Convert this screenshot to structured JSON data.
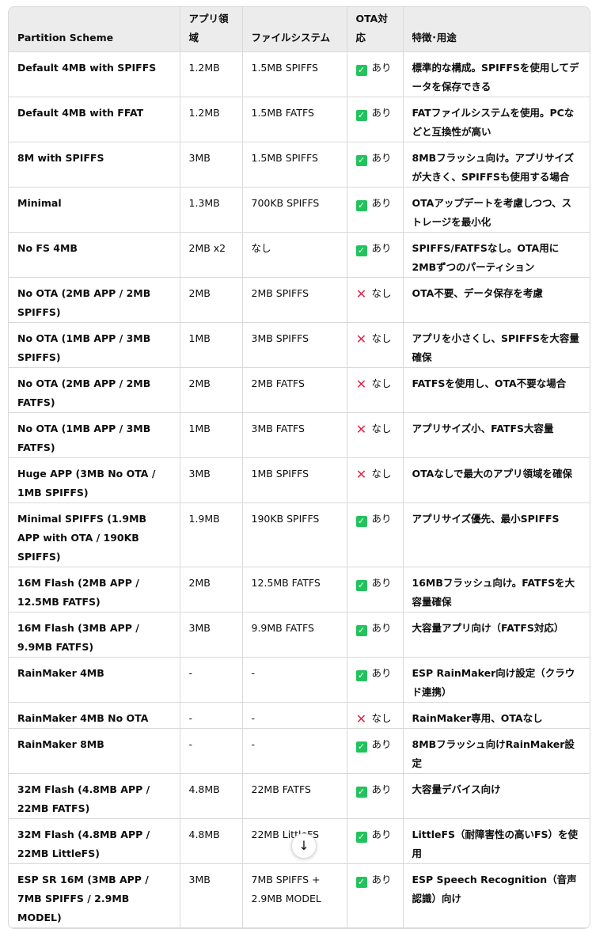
{
  "headers": [
    "Partition Scheme",
    "アプリ領域",
    "ファイルシステム",
    "OTA対応",
    "特徴･用途"
  ],
  "colors": {
    "ok": "#22c35d",
    "ng": "#e0264a",
    "header_bg": "#ececec"
  },
  "rows": [
    {
      "scheme": "Default 4MB with SPIFFS",
      "app": "1.2MB",
      "fs": "1.5MB SPIFFS",
      "ota": "あり",
      "ota_icon": "check-icon",
      "desc": "標準的な構成。SPIFFSを使用してデータを保存できる"
    },
    {
      "scheme": "Default 4MB with FFAT",
      "app": "1.2MB",
      "fs": "1.5MB FATFS",
      "ota": "あり",
      "ota_icon": "check-icon",
      "desc": "FATファイルシステムを使用。PCなどと互換性が高い"
    },
    {
      "scheme": "8M with SPIFFS",
      "app": "3MB",
      "fs": "1.5MB SPIFFS",
      "ota": "あり",
      "ota_icon": "check-icon",
      "desc": "8MBフラッシュ向け。アプリサイズが大きく、SPIFFSも使用する場合"
    },
    {
      "scheme": "Minimal",
      "app": "1.3MB",
      "fs": "700KB SPIFFS",
      "ota": "あり",
      "ota_icon": "check-icon",
      "desc": "OTAアップデートを考慮しつつ、ストレージを最小化"
    },
    {
      "scheme": "No FS 4MB",
      "app": "2MB x2",
      "fs": "なし",
      "ota": "あり",
      "ota_icon": "check-icon",
      "desc": "SPIFFS/FATFSなし。OTA用に2MBずつのパーティション"
    },
    {
      "scheme": "No OTA (2MB APP / 2MB SPIFFS)",
      "app": "2MB",
      "fs": "2MB SPIFFS",
      "ota": "なし",
      "ota_icon": "cross-icon",
      "desc": "OTA不要、データ保存を考慮"
    },
    {
      "scheme": "No OTA (1MB APP / 3MB SPIFFS)",
      "app": "1MB",
      "fs": "3MB SPIFFS",
      "ota": "なし",
      "ota_icon": "cross-icon",
      "desc": "アプリを小さくし、SPIFFSを大容量確保"
    },
    {
      "scheme": "No OTA (2MB APP / 2MB FATFS)",
      "app": "2MB",
      "fs": "2MB FATFS",
      "ota": "なし",
      "ota_icon": "cross-icon",
      "desc": "FATFSを使用し、OTA不要な場合"
    },
    {
      "scheme": "No OTA (1MB APP / 3MB FATFS)",
      "app": "1MB",
      "fs": "3MB FATFS",
      "ota": "なし",
      "ota_icon": "cross-icon",
      "desc": "アプリサイズ小、FATFS大容量"
    },
    {
      "scheme": "Huge APP (3MB No OTA / 1MB SPIFFS)",
      "app": "3MB",
      "fs": "1MB SPIFFS",
      "ota": "なし",
      "ota_icon": "cross-icon",
      "desc": "OTAなしで最大のアプリ領域を確保"
    },
    {
      "scheme": "Minimal SPIFFS (1.9MB APP with OTA / 190KB SPIFFS)",
      "app": "1.9MB",
      "fs": "190KB SPIFFS",
      "ota": "あり",
      "ota_icon": "check-icon",
      "desc": "アプリサイズ優先、最小SPIFFS"
    },
    {
      "scheme": "16M Flash (2MB APP / 12.5MB FATFS)",
      "app": "2MB",
      "fs": "12.5MB FATFS",
      "ota": "あり",
      "ota_icon": "check-icon",
      "desc": "16MBフラッシュ向け。FATFSを大容量確保"
    },
    {
      "scheme": "16M Flash (3MB APP / 9.9MB FATFS)",
      "app": "3MB",
      "fs": "9.9MB FATFS",
      "ota": "あり",
      "ota_icon": "check-icon",
      "desc": "大容量アプリ向け（FATFS対応）"
    },
    {
      "scheme": "RainMaker 4MB",
      "app": "-",
      "fs": "-",
      "ota": "あり",
      "ota_icon": "check-icon",
      "desc": "ESP RainMaker向け設定（クラウド連携）"
    },
    {
      "scheme": "RainMaker 4MB No OTA",
      "app": "-",
      "fs": "-",
      "ota": "なし",
      "ota_icon": "cross-icon",
      "desc": "RainMaker専用、OTAなし"
    },
    {
      "scheme": "RainMaker 8MB",
      "app": "-",
      "fs": "-",
      "ota": "あり",
      "ota_icon": "check-icon",
      "desc": "8MBフラッシュ向けRainMaker設定"
    },
    {
      "scheme": "32M Flash (4.8MB APP / 22MB FATFS)",
      "app": "4.8MB",
      "fs": "22MB FATFS",
      "ota": "あり",
      "ota_icon": "check-icon",
      "desc": "大容量デバイス向け"
    },
    {
      "scheme": "32M Flash (4.8MB APP / 22MB LittleFS)",
      "app": "4.8MB",
      "fs": "22MB LittleFS",
      "ota": "あり",
      "ota_icon": "check-icon",
      "desc": "LittleFS（耐障害性の高いFS）を使用"
    },
    {
      "scheme": "ESP SR 16M (3MB APP / 7MB SPIFFS / 2.9MB MODEL)",
      "app": "3MB",
      "fs": "7MB SPIFFS + 2.9MB MODEL",
      "ota": "あり",
      "ota_icon": "check-icon",
      "desc": "ESP Speech Recognition（音声認識）向け"
    }
  ],
  "scroll_button": {
    "icon": "arrow-down-icon",
    "glyph": "↓"
  }
}
